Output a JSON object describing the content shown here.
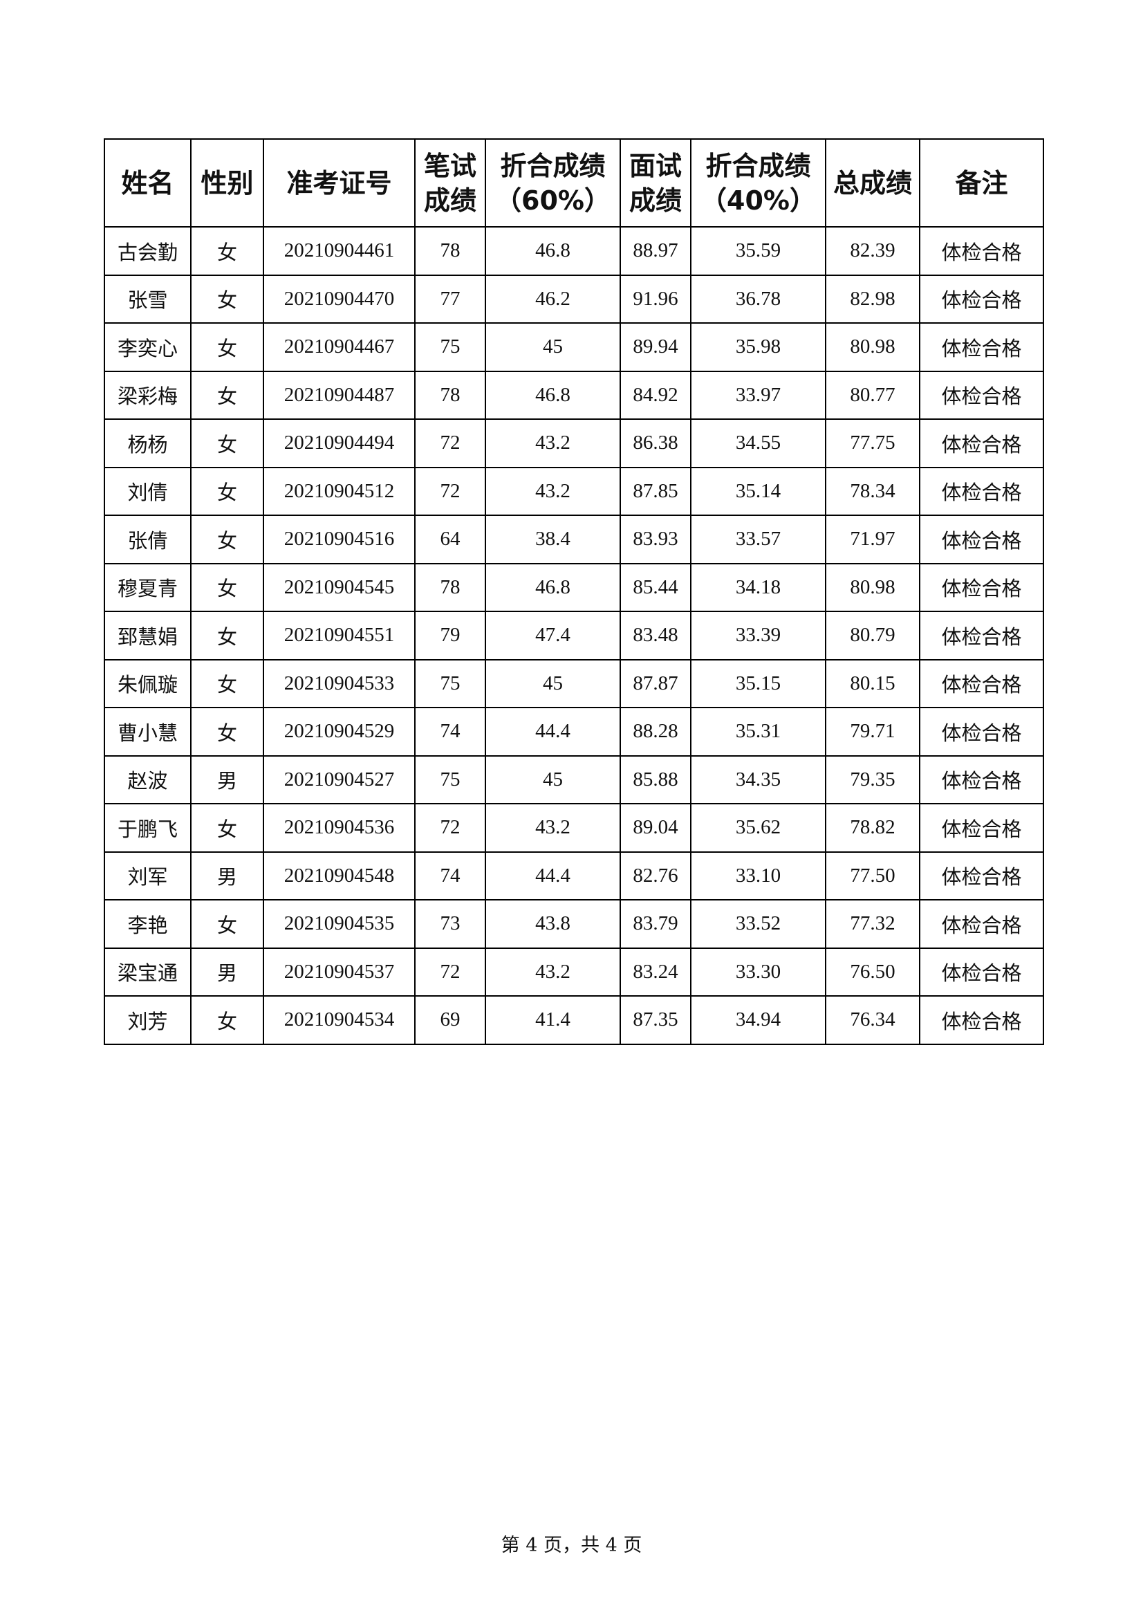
{
  "table": {
    "headers": [
      "姓名",
      "性别",
      "准考证号",
      "笔试成绩",
      "折合成绩（60%）",
      "面试成绩",
      "折合成绩（40%）",
      "总成绩",
      "备注"
    ],
    "rows": [
      [
        "古会勤",
        "女",
        "20210904461",
        "78",
        "46.8",
        "88.97",
        "35.59",
        "82.39",
        "体检合格"
      ],
      [
        "张雪",
        "女",
        "20210904470",
        "77",
        "46.2",
        "91.96",
        "36.78",
        "82.98",
        "体检合格"
      ],
      [
        "李奕心",
        "女",
        "20210904467",
        "75",
        "45",
        "89.94",
        "35.98",
        "80.98",
        "体检合格"
      ],
      [
        "梁彩梅",
        "女",
        "20210904487",
        "78",
        "46.8",
        "84.92",
        "33.97",
        "80.77",
        "体检合格"
      ],
      [
        "杨杨",
        "女",
        "20210904494",
        "72",
        "43.2",
        "86.38",
        "34.55",
        "77.75",
        "体检合格"
      ],
      [
        "刘倩",
        "女",
        "20210904512",
        "72",
        "43.2",
        "87.85",
        "35.14",
        "78.34",
        "体检合格"
      ],
      [
        "张倩",
        "女",
        "20210904516",
        "64",
        "38.4",
        "83.93",
        "33.57",
        "71.97",
        "体检合格"
      ],
      [
        "穆夏青",
        "女",
        "20210904545",
        "78",
        "46.8",
        "85.44",
        "34.18",
        "80.98",
        "体检合格"
      ],
      [
        "郅慧娟",
        "女",
        "20210904551",
        "79",
        "47.4",
        "83.48",
        "33.39",
        "80.79",
        "体检合格"
      ],
      [
        "朱佩璇",
        "女",
        "20210904533",
        "75",
        "45",
        "87.87",
        "35.15",
        "80.15",
        "体检合格"
      ],
      [
        "曹小慧",
        "女",
        "20210904529",
        "74",
        "44.4",
        "88.28",
        "35.31",
        "79.71",
        "体检合格"
      ],
      [
        "赵波",
        "男",
        "20210904527",
        "75",
        "45",
        "85.88",
        "34.35",
        "79.35",
        "体检合格"
      ],
      [
        "于鹏飞",
        "女",
        "20210904536",
        "72",
        "43.2",
        "89.04",
        "35.62",
        "78.82",
        "体检合格"
      ],
      [
        "刘军",
        "男",
        "20210904548",
        "74",
        "44.4",
        "82.76",
        "33.10",
        "77.50",
        "体检合格"
      ],
      [
        "李艳",
        "女",
        "20210904535",
        "73",
        "43.8",
        "83.79",
        "33.52",
        "77.32",
        "体检合格"
      ],
      [
        "梁宝通",
        "男",
        "20210904537",
        "72",
        "43.2",
        "83.24",
        "33.30",
        "76.50",
        "体检合格"
      ],
      [
        "刘芳",
        "女",
        "20210904534",
        "69",
        "41.4",
        "87.35",
        "34.94",
        "76.34",
        "体检合格"
      ]
    ]
  },
  "footer": "第 4 页，共 4 页"
}
